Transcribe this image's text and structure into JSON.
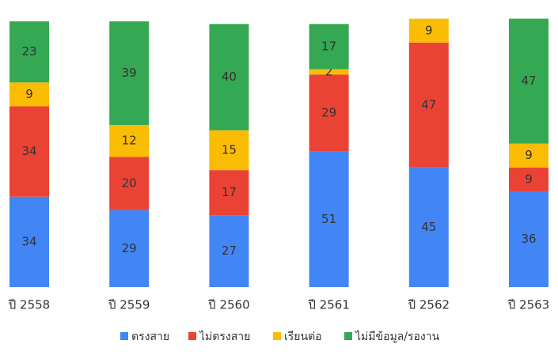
{
  "chart_data": {
    "type": "stacked_bar",
    "categories": [
      "ปี 2558",
      "ปี 2559",
      "ปี 2560",
      "ปี 2561",
      "ปี 2562",
      "ปี 2563"
    ],
    "series": [
      {
        "name": "ตรงสาย",
        "color": "#4285f4",
        "values": [
          34,
          29,
          27,
          51,
          45,
          36
        ]
      },
      {
        "name": "ไม่ตรงสาย",
        "color": "#ea4335",
        "values": [
          34,
          20,
          17,
          29,
          47,
          9
        ]
      },
      {
        "name": "เรียนต่อ",
        "color": "#fbbc04",
        "values": [
          9,
          12,
          15,
          2,
          9,
          9
        ]
      },
      {
        "name": "ไม่มีข้อมูล/รองาน",
        "color": "#34a853",
        "values": [
          23,
          39,
          40,
          17,
          null,
          47
        ]
      }
    ],
    "ylim": [
      0,
      100
    ],
    "legend": "bottom"
  }
}
